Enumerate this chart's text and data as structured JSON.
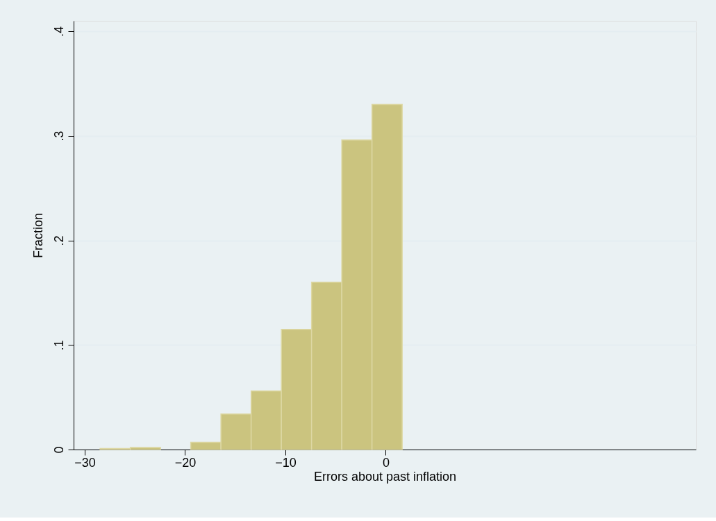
{
  "chart_data": {
    "type": "histogram",
    "xlabel": "Errors about past inflation",
    "ylabel": "Fraction",
    "bins": [
      -28.46,
      -25.45,
      -22.44,
      -19.43,
      -16.42,
      -13.41,
      -10.4,
      -7.39,
      -4.38,
      -1.37,
      1.64
    ],
    "values": [
      0.001,
      0.002,
      0,
      0.007,
      0.034,
      0.056,
      0.115,
      0.16,
      0.296,
      0.33
    ],
    "color": "#cbc47f",
    "xlim": [
      -31.1,
      30.9
    ],
    "xticks": [
      -30,
      -20,
      -10,
      0
    ],
    "ylim": [
      0,
      0.41
    ],
    "yticks": [
      {
        "value": 0,
        "label": "0"
      },
      {
        "value": 0.1,
        "label": ".1"
      },
      {
        "value": 0.2,
        "label": ".2"
      },
      {
        "value": 0.3,
        "label": ".3"
      },
      {
        "value": 0.4,
        "label": ".4"
      }
    ],
    "grid": "y"
  }
}
